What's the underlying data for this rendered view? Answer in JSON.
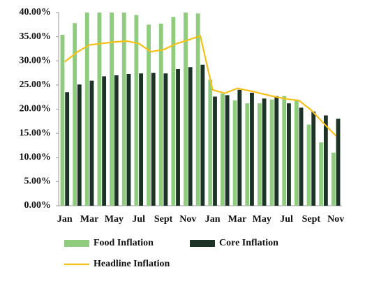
{
  "chart_data": {
    "type": "bar-line",
    "categories": [
      "Jan",
      null,
      "Mar",
      null,
      "May",
      null,
      "Jul",
      null,
      "Sept",
      null,
      "Nov",
      null,
      "Jan",
      null,
      "Mar",
      null,
      "May",
      null,
      "Jul",
      null,
      "Sept",
      null,
      "Nov"
    ],
    "series": [
      {
        "name": "Food Inflation",
        "color": "#8fcc7e",
        "kind": "bar",
        "values": [
          35.4,
          37.8,
          40,
          40,
          40,
          40,
          39.5,
          37.5,
          37.7,
          39.1,
          40,
          39.8,
          26.1,
          23.2,
          21.8,
          21.2,
          21.2,
          22.0,
          22.7,
          21.9,
          16.8,
          13.1,
          11.0
        ]
      },
      {
        "name": "Core Inflation",
        "color": "#1e3328",
        "kind": "bar",
        "values": [
          23.5,
          25.1,
          25.9,
          26.8,
          27.0,
          27.3,
          27.4,
          27.5,
          27.4,
          28.3,
          28.7,
          29.2,
          22.6,
          22.9,
          24.0,
          23.4,
          22.2,
          22.7,
          21.2,
          20.3,
          19.5,
          18.7,
          18.0
        ]
      },
      {
        "name": "Headline Inflation",
        "color": "#f5c018",
        "kind": "line",
        "values": [
          29.8,
          31.8,
          33.3,
          33.6,
          33.9,
          34.1,
          33.6,
          31.9,
          32.3,
          33.5,
          34.3,
          35.2,
          24.0,
          23.3,
          24.3,
          23.8,
          23.2,
          22.6,
          22.1,
          21.8,
          19.8,
          17.1,
          14.5
        ]
      }
    ],
    "ylim": [
      0,
      40
    ],
    "yticks": [
      {
        "value": 0,
        "label": "0.00%"
      },
      {
        "value": 5,
        "label": "5.00%"
      },
      {
        "value": 10,
        "label": "10.00%"
      },
      {
        "value": 15,
        "label": "15.00%"
      },
      {
        "value": 20,
        "label": "20.00%"
      },
      {
        "value": 25,
        "label": "25.00%"
      },
      {
        "value": 30,
        "label": "30.00%"
      },
      {
        "value": 35,
        "label": "35.00%"
      },
      {
        "value": 40,
        "label": "40.00%"
      }
    ],
    "legend": "bottom"
  }
}
